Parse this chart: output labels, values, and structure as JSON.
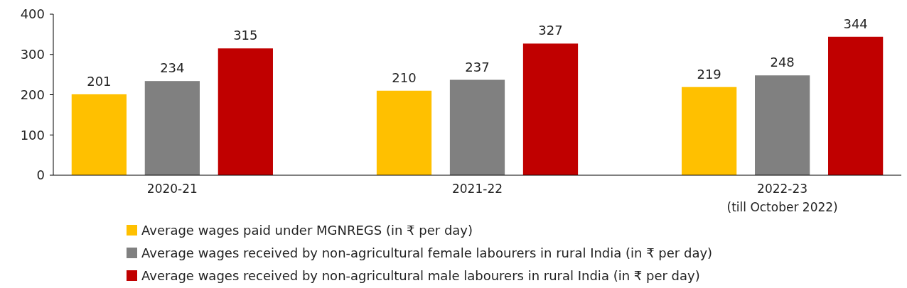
{
  "chart_data": {
    "type": "bar",
    "categories": [
      "2020-21",
      "2021-22",
      "2022-23\n(till October 2022)"
    ],
    "series": [
      {
        "name": "Average wages paid under MGNREGS (in ₹ per day)",
        "color": "#ffc000",
        "values": [
          201,
          210,
          219
        ]
      },
      {
        "name": "Average wages received by non-agricultural female labourers in rural India (in ₹ per day)",
        "color": "#808080",
        "values": [
          234,
          237,
          248
        ]
      },
      {
        "name": "Average wages received by non-agricultural male labourers in rural India (in ₹ per day)",
        "color": "#c00000",
        "values": [
          315,
          327,
          344
        ]
      }
    ],
    "ylim": [
      0,
      400
    ],
    "yticks": [
      0,
      100,
      200,
      300,
      400
    ],
    "data_labels": true,
    "legend": "bottom"
  }
}
